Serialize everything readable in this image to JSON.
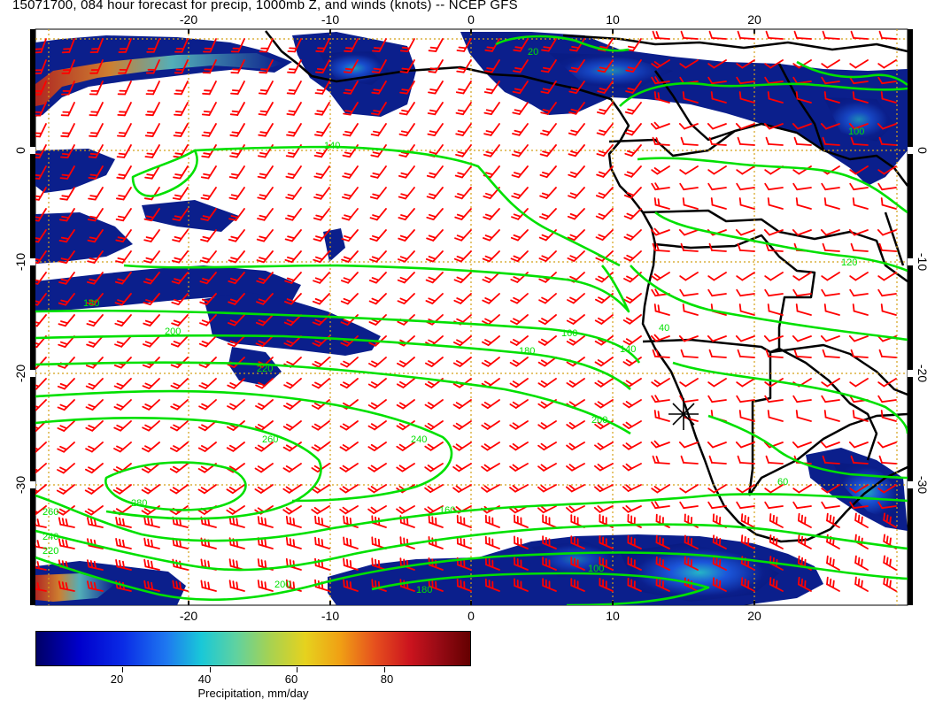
{
  "title": "15071700, 084 hour forecast for precip, 1000mb Z, and winds (knots) -- NCEP GFS",
  "axes": {
    "lon_ticks": [
      "-20",
      "-10",
      "0",
      "10",
      "20"
    ],
    "lat_ticks": [
      "0",
      "-10",
      "-20",
      "-30"
    ],
    "lon_range": [
      -31,
      31
    ],
    "lat_range": [
      -41,
      11
    ],
    "grid": true
  },
  "contours": {
    "labels": [
      "140",
      "180",
      "200",
      "160",
      "140",
      "180",
      "200",
      "220",
      "240",
      "260",
      "280",
      "260",
      "240",
      "220",
      "200",
      "180",
      "160",
      "40",
      "20",
      "60",
      "100",
      "120",
      "100"
    ]
  },
  "colorbar": {
    "title": "Precipitation, mm/day",
    "ticks": [
      "20",
      "40",
      "60",
      "80"
    ],
    "range": [
      0,
      100
    ],
    "palette": [
      "#000066",
      "#0000cc",
      "#1e78f0",
      "#19c8d8",
      "#a8d250",
      "#e6d21e",
      "#f0a014",
      "#e6501e",
      "#cc141e",
      "#640000"
    ]
  },
  "colors": {
    "contour": "#00e000",
    "barb": "#ff0000",
    "grid": "#d4a017",
    "land_border": "#000000",
    "rain_dark": "#0b1f8c"
  },
  "markers": [
    {
      "name": "asterisk-marker",
      "lon": 15,
      "lat": -24
    }
  ]
}
